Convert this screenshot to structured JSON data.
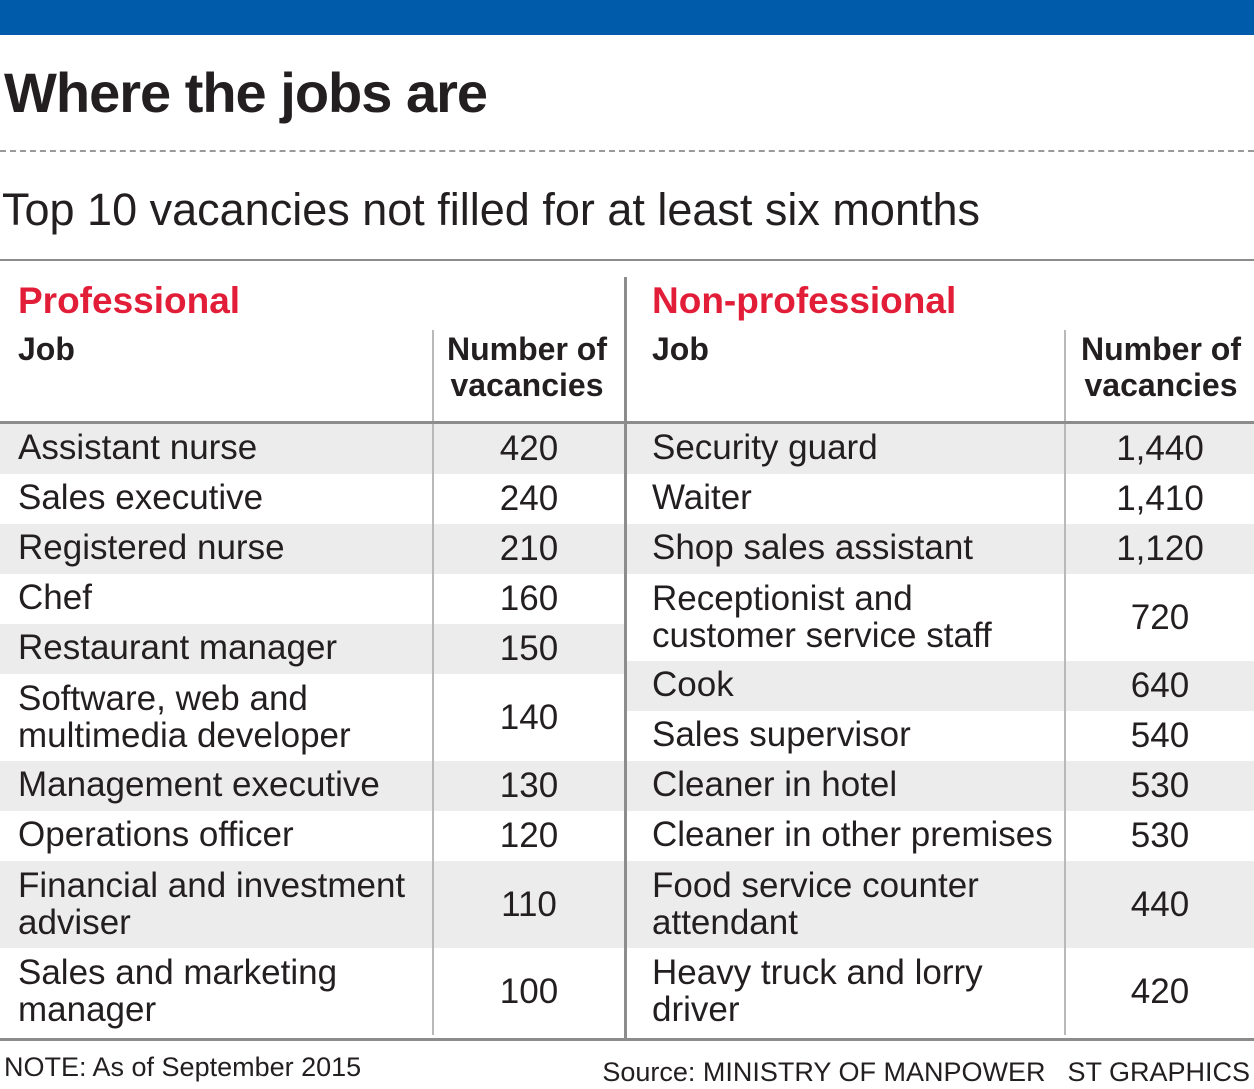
{
  "header": {
    "title": "Where the jobs are",
    "subtitle": "Top 10 vacancies not filled for at least six months",
    "brand_color": "#005bab",
    "accent_color": "#e21d38"
  },
  "chart_data": {
    "type": "table",
    "title": "Where the jobs are",
    "subtitle": "Top 10 vacancies not filled for at least six months",
    "tables": [
      {
        "section": "Professional",
        "columns": [
          "Job",
          "Number of vacancies"
        ],
        "rows": [
          {
            "job": "Assistant nurse",
            "vacancies": "420"
          },
          {
            "job": "Sales executive",
            "vacancies": "240"
          },
          {
            "job": "Registered nurse",
            "vacancies": "210"
          },
          {
            "job": "Chef",
            "vacancies": "160"
          },
          {
            "job": "Restaurant manager",
            "vacancies": "150"
          },
          {
            "job": "Software, web and multimedia developer",
            "vacancies": "140"
          },
          {
            "job": "Management executive",
            "vacancies": "130"
          },
          {
            "job": "Operations officer",
            "vacancies": "120"
          },
          {
            "job": "Financial and investment adviser",
            "vacancies": "110"
          },
          {
            "job": "Sales and marketing manager",
            "vacancies": "100"
          }
        ]
      },
      {
        "section": "Non-professional",
        "columns": [
          "Job",
          "Number of vacancies"
        ],
        "rows": [
          {
            "job": "Security guard",
            "vacancies": "1,440"
          },
          {
            "job": "Waiter",
            "vacancies": "1,410"
          },
          {
            "job": "Shop sales assistant",
            "vacancies": "1,120"
          },
          {
            "job": "Receptionist and customer service staff",
            "vacancies": "720"
          },
          {
            "job": "Cook",
            "vacancies": "640"
          },
          {
            "job": "Sales supervisor",
            "vacancies": "540"
          },
          {
            "job": "Cleaner in hotel",
            "vacancies": "530"
          },
          {
            "job": "Cleaner in other premises",
            "vacancies": "530"
          },
          {
            "job": "Food service counter attendant",
            "vacancies": "440"
          },
          {
            "job": "Heavy truck and lorry driver",
            "vacancies": "420"
          }
        ]
      }
    ]
  },
  "footer": {
    "note": "NOTE: As of September 2015",
    "source": "Source: MINISTRY OF MANPOWER",
    "credit": "ST GRAPHICS"
  }
}
